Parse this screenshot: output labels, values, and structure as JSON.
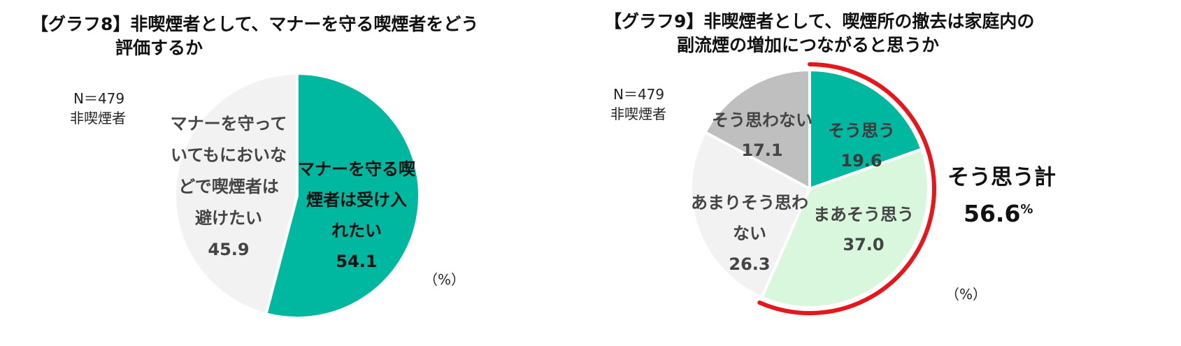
{
  "chart_data": [
    {
      "type": "pie",
      "title_line1": "【グラフ8】非喫煙者として、マナーを守る喫煙者をどう",
      "title_line2": "評価するか",
      "note_n": "N＝479",
      "note_group": "非喫煙者",
      "unit": "（%）",
      "slices": [
        {
          "label_lines": [
            "マナーを守る喫",
            "煙者は受け入",
            "れたい"
          ],
          "value": 54.1,
          "value_text": "54.1",
          "color": "#00b79f"
        },
        {
          "label_lines": [
            "マナーを守って",
            "いてもにおいな",
            "どで喫煙者は",
            "避けたい"
          ],
          "value": 45.9,
          "value_text": "45.9",
          "color": "#f2f2f2"
        }
      ]
    },
    {
      "type": "pie",
      "title_line1": "【グラフ9】非喫煙者として、喫煙所の撤去は家庭内の",
      "title_line2": "副流煙の増加につながると思うか",
      "note_n": "N＝479",
      "note_group": "非喫煙者",
      "unit": "（%）",
      "slices": [
        {
          "label_lines": [
            "そう思う"
          ],
          "value": 19.6,
          "value_text": "19.6",
          "color": "#00b79f"
        },
        {
          "label_lines": [
            "まあそう思う"
          ],
          "value": 37.0,
          "value_text": "37.0",
          "color": "#d9f7dd"
        },
        {
          "label_lines": [
            "あまりそう思わ",
            "ない"
          ],
          "value": 26.3,
          "value_text": "26.3",
          "color": "#f2f2f2"
        },
        {
          "label_lines": [
            "そう思わない"
          ],
          "value": 17.1,
          "value_text": "17.1",
          "color": "#bfbfbf"
        }
      ],
      "highlight": {
        "label": "そう思う計",
        "value": "56.6",
        "unit": "%",
        "color": "#e8151b"
      }
    }
  ]
}
